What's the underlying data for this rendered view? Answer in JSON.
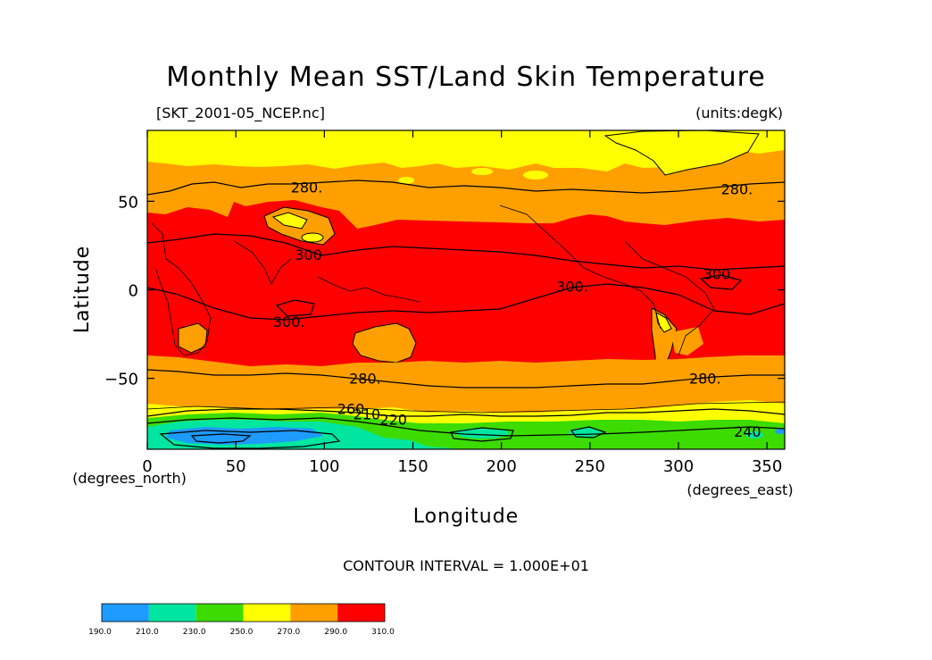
{
  "chart_data": {
    "type": "heatmap",
    "title": "Monthly Mean SST/Land Skin Temperature",
    "file_label": "[SKT_2001-05_NCEP.nc]",
    "units_label": "(units:degK)",
    "xlabel": "Longitude",
    "ylabel": "Latitude",
    "x_unit_label": "(degrees_east)",
    "y_unit_label": "(degrees_north)",
    "xlim": [
      0,
      360
    ],
    "ylim": [
      -90,
      90
    ],
    "x_ticks": [
      0,
      50,
      100,
      150,
      200,
      250,
      300,
      350
    ],
    "x_tick_labels": [
      "0",
      "50",
      "100",
      "150",
      "200",
      "250",
      "300",
      "350"
    ],
    "y_ticks": [
      50,
      0,
      -50
    ],
    "y_tick_labels": [
      "50",
      "0",
      "−50"
    ],
    "contour_interval_text": "CONTOUR INTERVAL = 1.000E+01",
    "colorbar": {
      "ticks": [
        "190.0",
        "210.0",
        "230.0",
        "250.0",
        "270.0",
        "290.0",
        "310.0"
      ],
      "bins": [
        {
          "min": 190,
          "max": 210,
          "color": "#1e9bff"
        },
        {
          "min": 210,
          "max": 230,
          "color": "#00e6a0"
        },
        {
          "min": 230,
          "max": 250,
          "color": "#3cdc00"
        },
        {
          "min": 250,
          "max": 270,
          "color": "#ffff00"
        },
        {
          "min": 270,
          "max": 290,
          "color": "#ffa000"
        },
        {
          "min": 290,
          "max": 310,
          "color": "#ff0000"
        }
      ]
    },
    "contour_labels": [
      {
        "text": "280.",
        "lon": 90,
        "lat": 58
      },
      {
        "text": "280.",
        "lon": 333,
        "lat": 57
      },
      {
        "text": "300",
        "lon": 91,
        "lat": 20
      },
      {
        "text": "300.",
        "lon": 240,
        "lat": 2
      },
      {
        "text": "300.",
        "lon": 323,
        "lat": 9
      },
      {
        "text": "300.",
        "lon": 80,
        "lat": -18
      },
      {
        "text": "280.",
        "lon": 123,
        "lat": -50
      },
      {
        "text": "280.",
        "lon": 315,
        "lat": -50
      },
      {
        "text": "260",
        "lon": 115,
        "lat": -67
      },
      {
        "text": "210",
        "lon": 124,
        "lat": -70
      },
      {
        "text": "220",
        "lon": 139,
        "lat": -73
      },
      {
        "text": "240",
        "lon": 339,
        "lat": -80
      }
    ]
  }
}
